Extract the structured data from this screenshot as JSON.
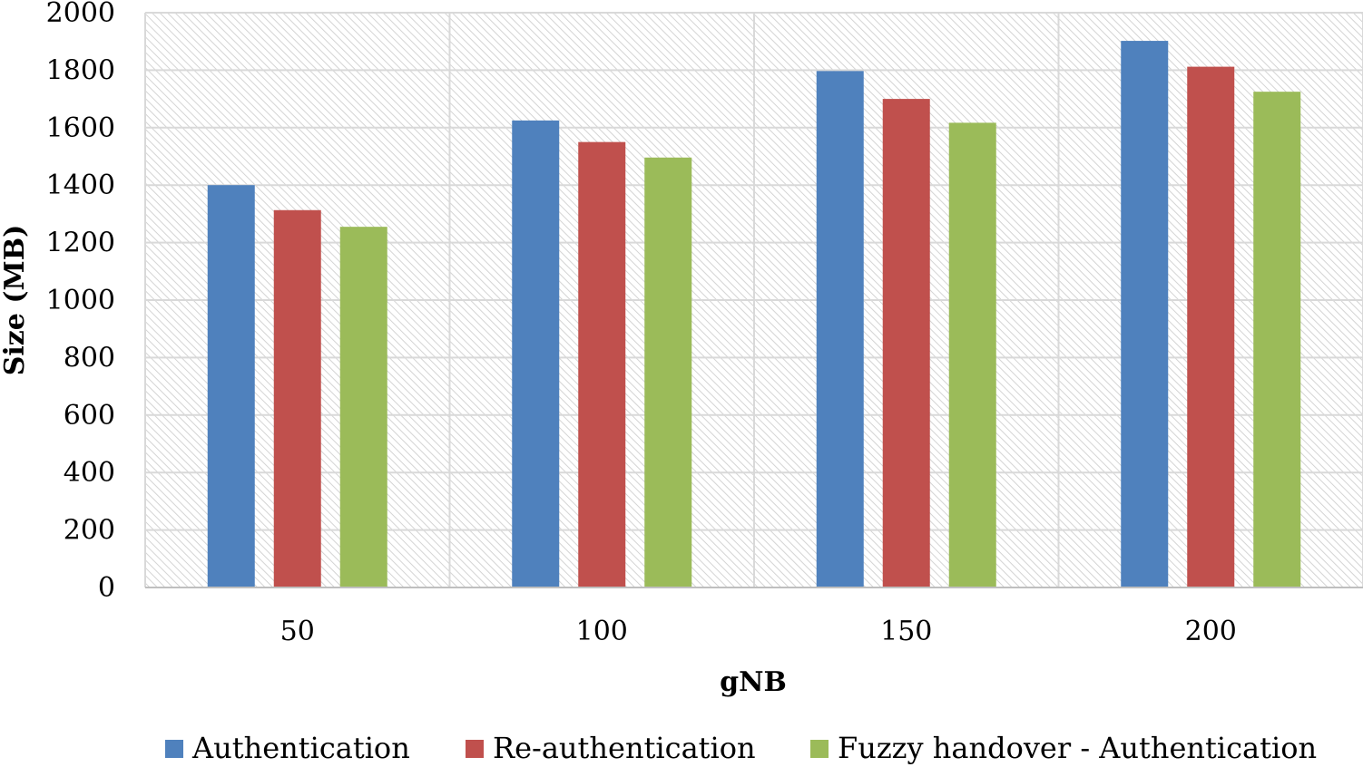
{
  "chart_data": {
    "type": "bar",
    "title": "",
    "xlabel": "gNB",
    "ylabel": "Size (MB)",
    "categories": [
      "50",
      "100",
      "150",
      "200"
    ],
    "ylim": [
      0,
      2000
    ],
    "yticks": [
      0,
      200,
      400,
      600,
      800,
      1000,
      1200,
      1400,
      1600,
      1800,
      2000
    ],
    "grid": true,
    "legend_position": "bottom",
    "series": [
      {
        "name": "Authentication",
        "color": "#4F81BD",
        "values": [
          1400,
          1625,
          1797,
          1902
        ]
      },
      {
        "name": "Re-authentication",
        "color": "#C0504D",
        "values": [
          1313,
          1550,
          1700,
          1812
        ]
      },
      {
        "name": "Fuzzy handover - Authentication",
        "color": "#9BBB59",
        "values": [
          1255,
          1496,
          1617,
          1725
        ]
      }
    ]
  }
}
